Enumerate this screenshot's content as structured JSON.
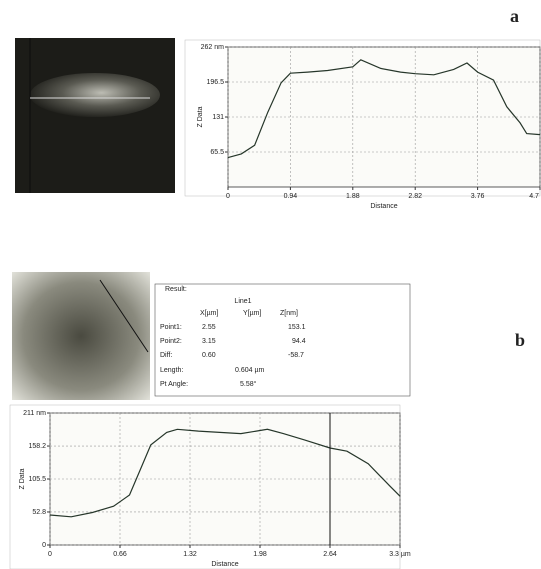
{
  "panel_labels": [
    "a",
    "b"
  ],
  "chart_data": [
    {
      "type": "line",
      "ylabel": "Z Data",
      "xlabel": "Distance",
      "color": "#26362a",
      "grid": true,
      "x": [
        0,
        0.2,
        0.4,
        0.6,
        0.8,
        0.94,
        1.2,
        1.5,
        1.88,
        2.0,
        2.3,
        2.6,
        2.82,
        3.1,
        3.4,
        3.6,
        3.76,
        4.0,
        4.2,
        4.4,
        4.5,
        4.7
      ],
      "values": [
        55,
        62,
        78,
        140,
        195,
        213,
        215,
        218,
        225,
        238,
        222,
        215,
        212,
        210,
        220,
        232,
        215,
        200,
        150,
        120,
        100,
        98
      ],
      "xlim": [
        0,
        4.7
      ],
      "ylim": [
        0,
        262
      ],
      "xticks": [
        0,
        0.94,
        1.88,
        2.82,
        3.76,
        {
          "value": 4.7,
          "label": "4.7 µm"
        }
      ],
      "yticks": [
        65.5,
        131,
        196.5,
        {
          "value": 262,
          "label": "262 nm"
        }
      ]
    },
    {
      "type": "line",
      "ylabel": "Z Data",
      "xlabel": "Distance",
      "color": "#26362a",
      "grid": true,
      "x": [
        0,
        0.2,
        0.4,
        0.6,
        0.75,
        0.85,
        0.95,
        1.1,
        1.2,
        1.4,
        1.6,
        1.8,
        1.98,
        2.05,
        2.2,
        2.4,
        2.64,
        2.8,
        3.0,
        3.2,
        3.3
      ],
      "values": [
        48,
        45,
        52,
        62,
        80,
        120,
        160,
        180,
        185,
        182,
        180,
        178,
        183,
        185,
        178,
        168,
        155,
        150,
        130,
        95,
        78
      ],
      "xlim": [
        0,
        3.3
      ],
      "ylim": [
        0,
        211
      ],
      "cursor_x": 2.64,
      "xticks": [
        0,
        0.66,
        1.32,
        1.98,
        2.64,
        {
          "value": 3.3,
          "label": "3.3 µm"
        }
      ],
      "yticks": [
        0,
        52.8,
        105.5,
        158.2,
        {
          "value": 211,
          "label": "211 nm"
        }
      ]
    }
  ],
  "result": {
    "title": "Result:",
    "series_label": "Line1",
    "columns": [
      "X[µm]",
      "Y[µm]",
      "Z[nm]"
    ],
    "rows": [
      [
        "Point1:",
        "2.55",
        "",
        "153.1"
      ],
      [
        "Point2:",
        "3.15",
        "",
        "94.4"
      ],
      [
        "Diff:",
        "0.60",
        "",
        "-58.7"
      ]
    ],
    "length_label": "Length:",
    "length": "0.604 µm",
    "angle_label": "Pt Angle:",
    "angle": "5.58°"
  }
}
